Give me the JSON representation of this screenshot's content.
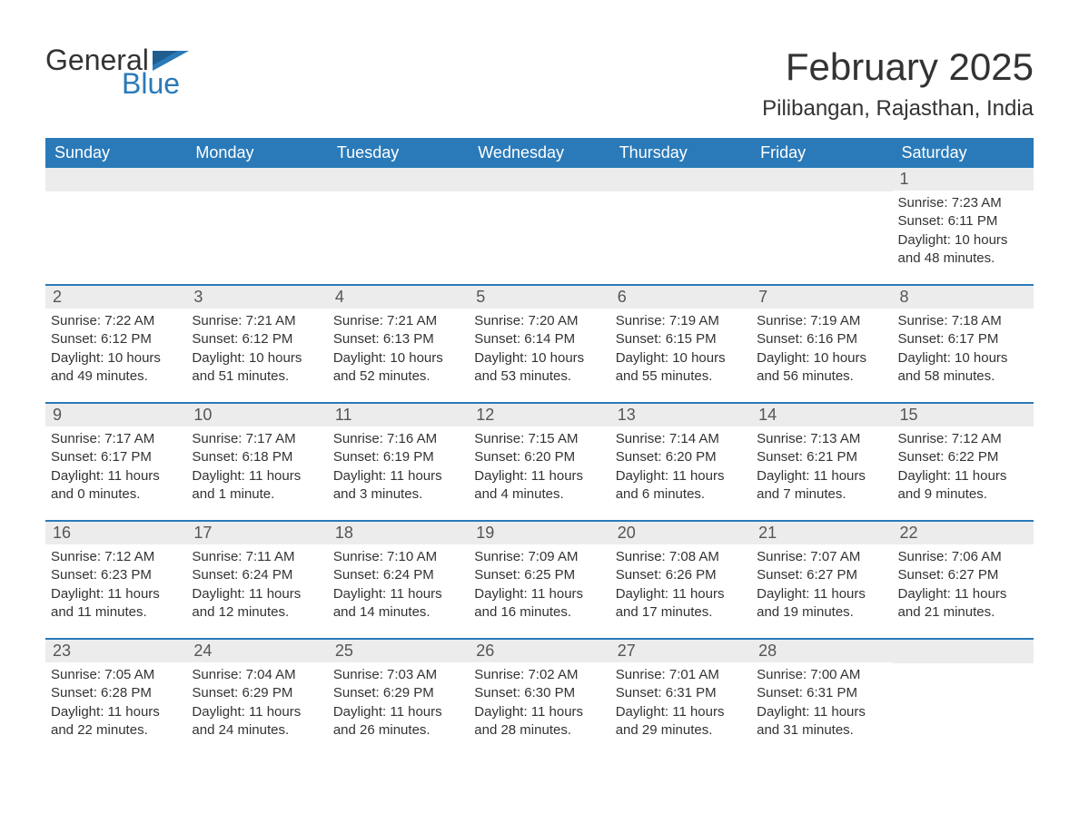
{
  "logo": {
    "word1": "General",
    "word2": "Blue",
    "flag_color": "#2a7ab9"
  },
  "title": "February 2025",
  "location": "Pilibangan, Rajasthan, India",
  "colors": {
    "header_bg": "#2a7ab9",
    "header_text": "#ffffff",
    "daynum_bg": "#ececec",
    "border": "#2a7ab9",
    "text": "#333333"
  },
  "day_headers": [
    "Sunday",
    "Monday",
    "Tuesday",
    "Wednesday",
    "Thursday",
    "Friday",
    "Saturday"
  ],
  "first_weekday_index": 6,
  "days": [
    {
      "n": 1,
      "sunrise": "7:23 AM",
      "sunset": "6:11 PM",
      "daylight": "10 hours and 48 minutes."
    },
    {
      "n": 2,
      "sunrise": "7:22 AM",
      "sunset": "6:12 PM",
      "daylight": "10 hours and 49 minutes."
    },
    {
      "n": 3,
      "sunrise": "7:21 AM",
      "sunset": "6:12 PM",
      "daylight": "10 hours and 51 minutes."
    },
    {
      "n": 4,
      "sunrise": "7:21 AM",
      "sunset": "6:13 PM",
      "daylight": "10 hours and 52 minutes."
    },
    {
      "n": 5,
      "sunrise": "7:20 AM",
      "sunset": "6:14 PM",
      "daylight": "10 hours and 53 minutes."
    },
    {
      "n": 6,
      "sunrise": "7:19 AM",
      "sunset": "6:15 PM",
      "daylight": "10 hours and 55 minutes."
    },
    {
      "n": 7,
      "sunrise": "7:19 AM",
      "sunset": "6:16 PM",
      "daylight": "10 hours and 56 minutes."
    },
    {
      "n": 8,
      "sunrise": "7:18 AM",
      "sunset": "6:17 PM",
      "daylight": "10 hours and 58 minutes."
    },
    {
      "n": 9,
      "sunrise": "7:17 AM",
      "sunset": "6:17 PM",
      "daylight": "11 hours and 0 minutes."
    },
    {
      "n": 10,
      "sunrise": "7:17 AM",
      "sunset": "6:18 PM",
      "daylight": "11 hours and 1 minute."
    },
    {
      "n": 11,
      "sunrise": "7:16 AM",
      "sunset": "6:19 PM",
      "daylight": "11 hours and 3 minutes."
    },
    {
      "n": 12,
      "sunrise": "7:15 AM",
      "sunset": "6:20 PM",
      "daylight": "11 hours and 4 minutes."
    },
    {
      "n": 13,
      "sunrise": "7:14 AM",
      "sunset": "6:20 PM",
      "daylight": "11 hours and 6 minutes."
    },
    {
      "n": 14,
      "sunrise": "7:13 AM",
      "sunset": "6:21 PM",
      "daylight": "11 hours and 7 minutes."
    },
    {
      "n": 15,
      "sunrise": "7:12 AM",
      "sunset": "6:22 PM",
      "daylight": "11 hours and 9 minutes."
    },
    {
      "n": 16,
      "sunrise": "7:12 AM",
      "sunset": "6:23 PM",
      "daylight": "11 hours and 11 minutes."
    },
    {
      "n": 17,
      "sunrise": "7:11 AM",
      "sunset": "6:24 PM",
      "daylight": "11 hours and 12 minutes."
    },
    {
      "n": 18,
      "sunrise": "7:10 AM",
      "sunset": "6:24 PM",
      "daylight": "11 hours and 14 minutes."
    },
    {
      "n": 19,
      "sunrise": "7:09 AM",
      "sunset": "6:25 PM",
      "daylight": "11 hours and 16 minutes."
    },
    {
      "n": 20,
      "sunrise": "7:08 AM",
      "sunset": "6:26 PM",
      "daylight": "11 hours and 17 minutes."
    },
    {
      "n": 21,
      "sunrise": "7:07 AM",
      "sunset": "6:27 PM",
      "daylight": "11 hours and 19 minutes."
    },
    {
      "n": 22,
      "sunrise": "7:06 AM",
      "sunset": "6:27 PM",
      "daylight": "11 hours and 21 minutes."
    },
    {
      "n": 23,
      "sunrise": "7:05 AM",
      "sunset": "6:28 PM",
      "daylight": "11 hours and 22 minutes."
    },
    {
      "n": 24,
      "sunrise": "7:04 AM",
      "sunset": "6:29 PM",
      "daylight": "11 hours and 24 minutes."
    },
    {
      "n": 25,
      "sunrise": "7:03 AM",
      "sunset": "6:29 PM",
      "daylight": "11 hours and 26 minutes."
    },
    {
      "n": 26,
      "sunrise": "7:02 AM",
      "sunset": "6:30 PM",
      "daylight": "11 hours and 28 minutes."
    },
    {
      "n": 27,
      "sunrise": "7:01 AM",
      "sunset": "6:31 PM",
      "daylight": "11 hours and 29 minutes."
    },
    {
      "n": 28,
      "sunrise": "7:00 AM",
      "sunset": "6:31 PM",
      "daylight": "11 hours and 31 minutes."
    }
  ],
  "labels": {
    "sunrise": "Sunrise:",
    "sunset": "Sunset:",
    "daylight": "Daylight:"
  }
}
